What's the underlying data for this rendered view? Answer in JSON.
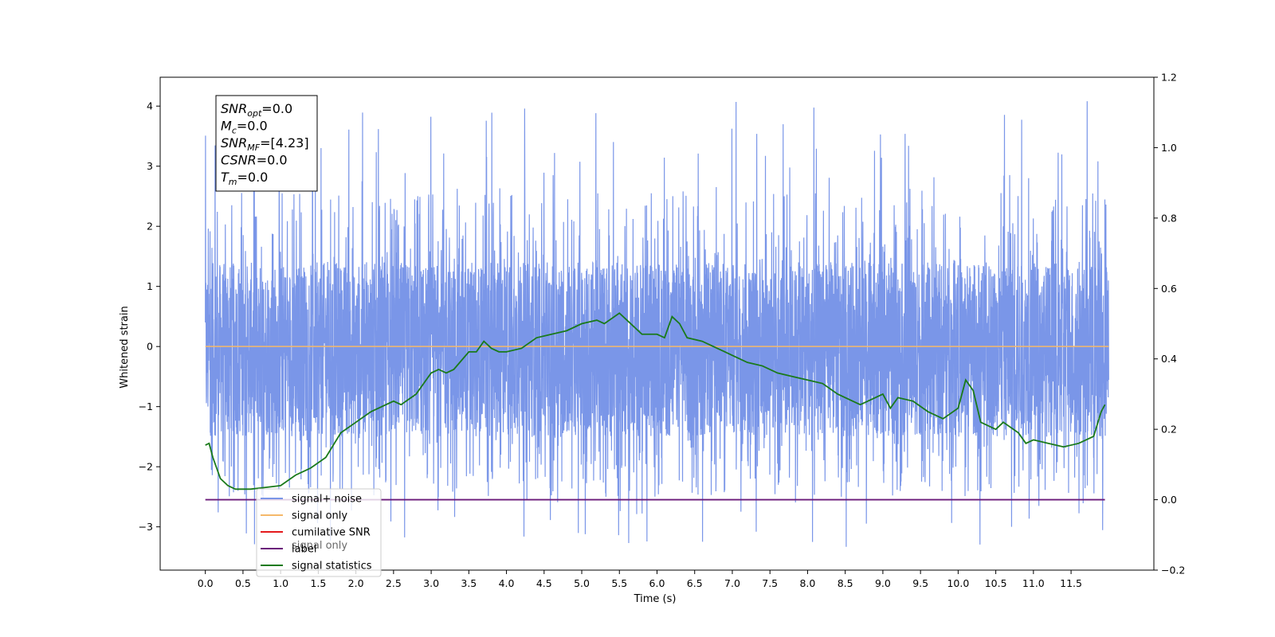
{
  "chart_data": {
    "type": "line",
    "title": "",
    "xlabel": "Time (s)",
    "ylabel": "Whitened strain",
    "xlim": [
      -0.6,
      12.6
    ],
    "ylim": [
      -3.72,
      4.48
    ],
    "y2lim": [
      -0.2,
      1.2
    ],
    "x_ticks": [
      "0.0",
      "0.5",
      "1.0",
      "1.5",
      "2.0",
      "2.5",
      "3.0",
      "3.5",
      "4.0",
      "4.5",
      "5.0",
      "5.5",
      "6.0",
      "6.5",
      "7.0",
      "7.5",
      "8.0",
      "8.5",
      "9.0",
      "9.5",
      "10.0",
      "10.5",
      "11.0",
      "11.5"
    ],
    "y_ticks": [
      "−3",
      "−2",
      "−1",
      "0",
      "1",
      "2",
      "3",
      "4"
    ],
    "y2_ticks": [
      "−0.2",
      "0.0",
      "0.2",
      "0.4",
      "0.6",
      "0.8",
      "1.0",
      "1.2"
    ],
    "legend_position": "lower-left",
    "legend": [
      "signal+ noise",
      "signal only",
      "cumilative SNR",
      "label",
      "signal statistics"
    ],
    "legend_overlap_text": "signal only",
    "series": [
      {
        "name": "signal+ noise",
        "color": "#7a96e8",
        "axis": "left",
        "noise_envelope": {
          "x_start": 0.0,
          "x_end": 12.0,
          "core_min": -1.5,
          "core_max": 1.4,
          "spike_min": -3.35,
          "spike_max": 4.1
        }
      },
      {
        "name": "signal only",
        "color": "#f5b86a",
        "axis": "left",
        "x": [
          0.0,
          12.0
        ],
        "y": [
          0.0,
          0.0
        ]
      },
      {
        "name": "cumilative SNR",
        "color": "#e41a1c",
        "axis": "right",
        "x": [],
        "y": []
      },
      {
        "name": "label",
        "color": "#6a1a7a",
        "axis": "right",
        "x": [
          0.0,
          11.95
        ],
        "y": [
          0.0,
          0.0
        ]
      },
      {
        "name": "signal statistics",
        "color": "#1a7a1a",
        "axis": "right",
        "x": [
          0.0,
          0.05,
          0.1,
          0.2,
          0.3,
          0.4,
          0.6,
          0.8,
          1.0,
          1.2,
          1.4,
          1.6,
          1.8,
          2.0,
          2.2,
          2.4,
          2.5,
          2.6,
          2.8,
          2.9,
          3.0,
          3.1,
          3.2,
          3.3,
          3.5,
          3.6,
          3.7,
          3.8,
          3.9,
          4.0,
          4.2,
          4.4,
          4.6,
          4.8,
          5.0,
          5.2,
          5.3,
          5.5,
          5.6,
          5.8,
          6.0,
          6.1,
          6.2,
          6.3,
          6.4,
          6.6,
          6.8,
          6.9,
          7.0,
          7.2,
          7.4,
          7.6,
          7.8,
          8.0,
          8.2,
          8.4,
          8.6,
          8.7,
          8.8,
          9.0,
          9.1,
          9.2,
          9.4,
          9.6,
          9.8,
          10.0,
          10.1,
          10.2,
          10.3,
          10.5,
          10.6,
          10.8,
          10.9,
          11.0,
          11.2,
          11.4,
          11.6,
          11.7,
          11.8,
          11.9,
          11.95
        ],
        "y": [
          0.155,
          0.16,
          0.12,
          0.06,
          0.04,
          0.03,
          0.03,
          0.035,
          0.04,
          0.07,
          0.09,
          0.12,
          0.19,
          0.22,
          0.25,
          0.27,
          0.28,
          0.27,
          0.3,
          0.33,
          0.36,
          0.37,
          0.36,
          0.37,
          0.42,
          0.42,
          0.45,
          0.43,
          0.42,
          0.42,
          0.43,
          0.46,
          0.47,
          0.48,
          0.5,
          0.51,
          0.5,
          0.53,
          0.51,
          0.47,
          0.47,
          0.46,
          0.52,
          0.5,
          0.46,
          0.45,
          0.43,
          0.42,
          0.41,
          0.39,
          0.38,
          0.36,
          0.35,
          0.34,
          0.33,
          0.3,
          0.28,
          0.27,
          0.28,
          0.3,
          0.26,
          0.29,
          0.28,
          0.25,
          0.23,
          0.26,
          0.34,
          0.31,
          0.22,
          0.2,
          0.22,
          0.19,
          0.16,
          0.17,
          0.16,
          0.15,
          0.16,
          0.17,
          0.18,
          0.25,
          0.27
        ]
      }
    ],
    "annotation": {
      "lines": [
        {
          "base": "SNR",
          "sub": "opt",
          "value": "=0.0"
        },
        {
          "base": "M",
          "sub": "c",
          "value": "=0.0"
        },
        {
          "base": "SNR",
          "sub": "MF",
          "value": "=[4.23]"
        },
        {
          "base": "CSNR",
          "sub": "",
          "value": "=0.0"
        },
        {
          "base": "T",
          "sub": "m",
          "value": "=0.0"
        }
      ]
    }
  }
}
